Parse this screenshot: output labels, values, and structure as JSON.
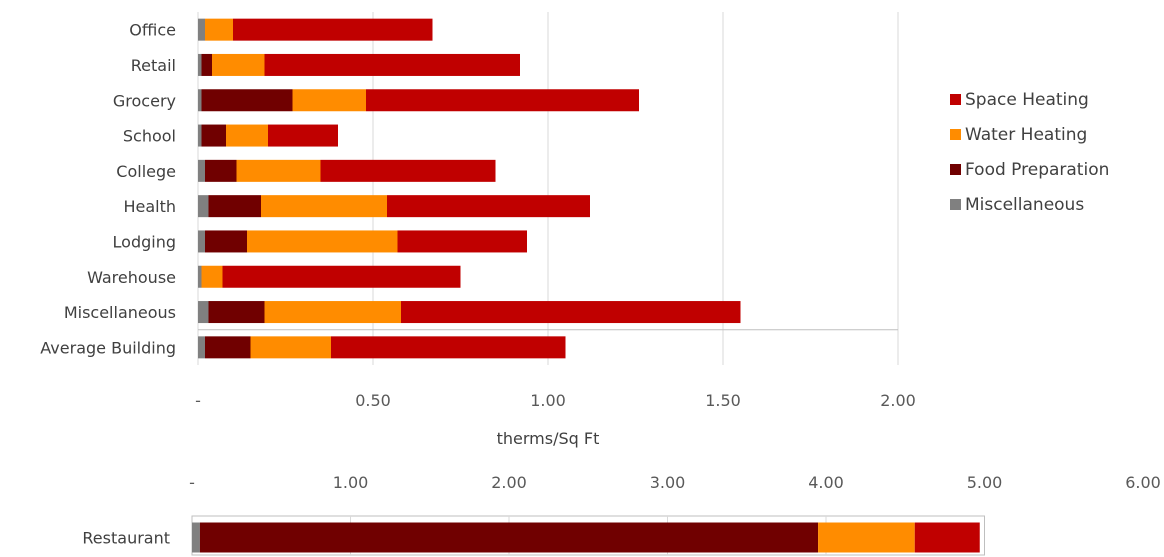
{
  "colors": {
    "space_heating": "#c00000",
    "water_heating": "#ff8c00",
    "food_preparation": "#700000",
    "miscellaneous": "#808080",
    "grid": "#d9d9d9",
    "border": "#bfbfbf"
  },
  "chart_data": [
    {
      "type": "bar",
      "orientation": "horizontal",
      "stacked": true,
      "xlabel": "therms/Sq Ft",
      "xlim": [
        0,
        2.0
      ],
      "xticks": [
        0,
        0.5,
        1.0,
        1.5,
        2.0
      ],
      "xtick_labels": [
        "-",
        "0.50",
        "1.00",
        "1.50",
        "2.00"
      ],
      "grid": "vertical",
      "legend_position": "right",
      "categories": [
        "Office",
        "Retail",
        "Grocery",
        "School",
        "College",
        "Health",
        "Lodging",
        "Warehouse",
        "Miscellaneous",
        "Average Building"
      ],
      "series": [
        {
          "name": "Miscellaneous",
          "color": "#808080",
          "values": [
            0.02,
            0.01,
            0.01,
            0.01,
            0.02,
            0.03,
            0.02,
            0.01,
            0.03,
            0.02
          ]
        },
        {
          "name": "Food Preparation",
          "color": "#700000",
          "values": [
            0.0,
            0.03,
            0.26,
            0.07,
            0.09,
            0.15,
            0.12,
            0.0,
            0.16,
            0.13
          ]
        },
        {
          "name": "Water Heating",
          "color": "#ff8c00",
          "values": [
            0.08,
            0.15,
            0.21,
            0.12,
            0.24,
            0.36,
            0.43,
            0.06,
            0.39,
            0.23
          ]
        },
        {
          "name": "Space Heating",
          "color": "#c00000",
          "values": [
            0.57,
            0.73,
            0.78,
            0.2,
            0.5,
            0.58,
            0.37,
            0.68,
            0.97,
            0.67
          ]
        }
      ],
      "legend": [
        "Space Heating",
        "Water Heating",
        "Food Preparation",
        "Miscellaneous"
      ]
    },
    {
      "type": "bar",
      "orientation": "horizontal",
      "stacked": true,
      "xlim": [
        0,
        6.0
      ],
      "xticks": [
        0,
        1,
        2,
        3,
        4,
        5,
        6
      ],
      "xtick_labels": [
        "-",
        "1.00",
        "2.00",
        "3.00",
        "4.00",
        "5.00",
        "6.00"
      ],
      "xaxis_position": "top",
      "grid": "vertical",
      "categories": [
        "Restaurant"
      ],
      "series": [
        {
          "name": "Miscellaneous",
          "color": "#808080",
          "values": [
            0.05
          ]
        },
        {
          "name": "Food Preparation",
          "color": "#700000",
          "values": [
            3.9
          ]
        },
        {
          "name": "Water Heating",
          "color": "#ff8c00",
          "values": [
            0.61
          ]
        },
        {
          "name": "Space Heating",
          "color": "#c00000",
          "values": [
            0.41
          ]
        }
      ]
    }
  ]
}
